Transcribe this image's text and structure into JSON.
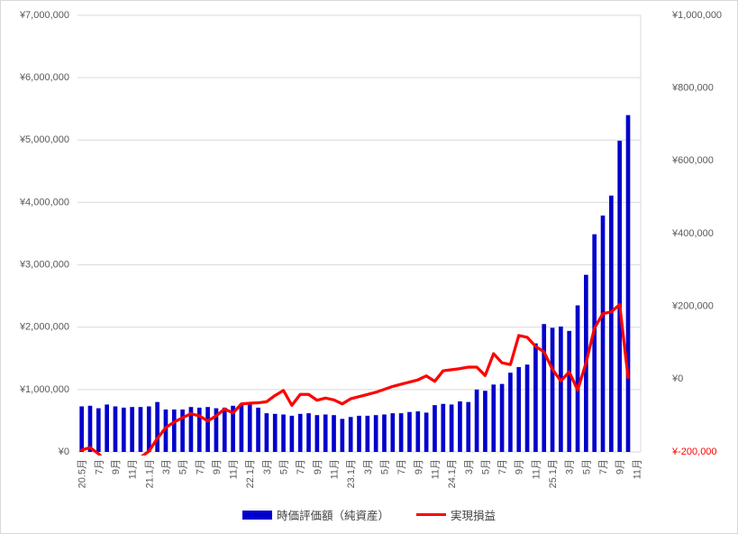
{
  "legend": {
    "items": [
      {
        "label": "時価評価額（純資産）",
        "marker": "bar-swatch",
        "color": "#0000CC"
      },
      {
        "label": "実現損益",
        "marker": "line-swatch",
        "color": "#FF0000"
      }
    ]
  },
  "chart_data": {
    "type": "bar",
    "subtype": "dual-axis combo (bar + line)",
    "categories": [
      "2020-05",
      "2020-06",
      "2020-07",
      "2020-08",
      "2020-09",
      "2020-10",
      "2020-11",
      "2020-12",
      "2021-01",
      "2021-02",
      "2021-03",
      "2021-04",
      "2021-05",
      "2021-06",
      "2021-07",
      "2021-08",
      "2021-09",
      "2021-10",
      "2021-11",
      "2021-12",
      "2022-01",
      "2022-02",
      "2022-03",
      "2022-04",
      "2022-05",
      "2022-06",
      "2022-07",
      "2022-08",
      "2022-09",
      "2022-10",
      "2022-11",
      "2022-12",
      "2023-01",
      "2023-02",
      "2023-03",
      "2023-04",
      "2023-05",
      "2023-06",
      "2023-07",
      "2023-08",
      "2023-09",
      "2023-10",
      "2023-11",
      "2023-12",
      "2024-01",
      "2024-02",
      "2024-03",
      "2024-04",
      "2024-05",
      "2024-06",
      "2024-07",
      "2024-08",
      "2024-09",
      "2024-10",
      "2024-11",
      "2024-12",
      "2025-01",
      "2025-02",
      "2025-03",
      "2025-04",
      "2025-05",
      "2025-06",
      "2025-07",
      "2025-08",
      "2025-09",
      "2025-10"
    ],
    "x_tick_labels": [
      "20.5月",
      "7月",
      "9月",
      "11月",
      "21.1月",
      "3月",
      "5月",
      "7月",
      "9月",
      "11月",
      "22.1月",
      "3月",
      "5月",
      "7月",
      "9月",
      "11月",
      "23.1月",
      "3月",
      "5月",
      "7月",
      "9月",
      "11月",
      "24.1月",
      "3月",
      "5月",
      "7月",
      "9月",
      "11月",
      "25.1月",
      "3月",
      "5月",
      "7月",
      "9月",
      "11月"
    ],
    "x_slots_total": 67,
    "series": [
      {
        "name": "時価評価額（純資産）",
        "type": "bar",
        "axis": "left",
        "color": "#0000CC",
        "values": [
          730000,
          740000,
          700000,
          760000,
          730000,
          710000,
          720000,
          720000,
          730000,
          800000,
          680000,
          680000,
          680000,
          720000,
          710000,
          720000,
          700000,
          710000,
          740000,
          770000,
          780000,
          710000,
          620000,
          610000,
          600000,
          580000,
          610000,
          620000,
          590000,
          600000,
          590000,
          530000,
          560000,
          580000,
          580000,
          590000,
          600000,
          620000,
          620000,
          640000,
          650000,
          630000,
          750000,
          770000,
          760000,
          810000,
          800000,
          1000000,
          980000,
          1080000,
          1090000,
          1270000,
          1360000,
          1400000,
          1740000,
          2050000,
          1990000,
          2010000,
          1940000,
          2350000,
          2840000,
          3490000,
          3790000,
          4110000,
          4990000,
          5400000
        ]
      },
      {
        "name": "実現損益",
        "type": "line",
        "axis": "right",
        "color": "#FF0000",
        "values": [
          -195000,
          -188000,
          -205000,
          -230000,
          -235000,
          -238000,
          -235000,
          -215000,
          -198000,
          -163000,
          -133000,
          -118000,
          -106000,
          -95000,
          -101000,
          -115000,
          -101000,
          -82000,
          -93000,
          -68000,
          -66000,
          -65000,
          -62000,
          -45000,
          -31000,
          -72000,
          -42000,
          -42000,
          -58000,
          -52000,
          -57000,
          -68000,
          -54000,
          -48000,
          -42000,
          -36000,
          -28000,
          -20000,
          -14000,
          -8000,
          -2000,
          9000,
          -6000,
          23000,
          26000,
          29000,
          33000,
          33000,
          10000,
          70000,
          45000,
          40000,
          120000,
          115000,
          90000,
          75000,
          27000,
          -5000,
          20000,
          -30000,
          45000,
          140000,
          180000,
          185000,
          205000,
          5000
        ],
        "note": "line is clipped at the plot bottom (below right-axis minimum) from 2020-07 through 2020-12"
      }
    ],
    "left_axis": {
      "min": 0,
      "max": 7000000,
      "step": 1000000,
      "tick_labels": [
        "¥0",
        "¥1,000,000",
        "¥2,000,000",
        "¥3,000,000",
        "¥4,000,000",
        "¥5,000,000",
        "¥6,000,000",
        "¥7,000,000"
      ],
      "label_color": "#595959"
    },
    "right_axis": {
      "min": -200000,
      "max": 1000000,
      "step": 200000,
      "tick_labels": [
        "¥-200,000",
        "¥0",
        "¥200,000",
        "¥400,000",
        "¥600,000",
        "¥800,000",
        "¥1,000,000"
      ],
      "label_color": "#595959",
      "negative_tick_color": "#FF0000"
    },
    "grid": "horizontal gridlines for left axis only",
    "gridline_color": "#D9D9D9",
    "legend_position": "bottom",
    "background_color": "#FFFFFF",
    "title": ""
  }
}
